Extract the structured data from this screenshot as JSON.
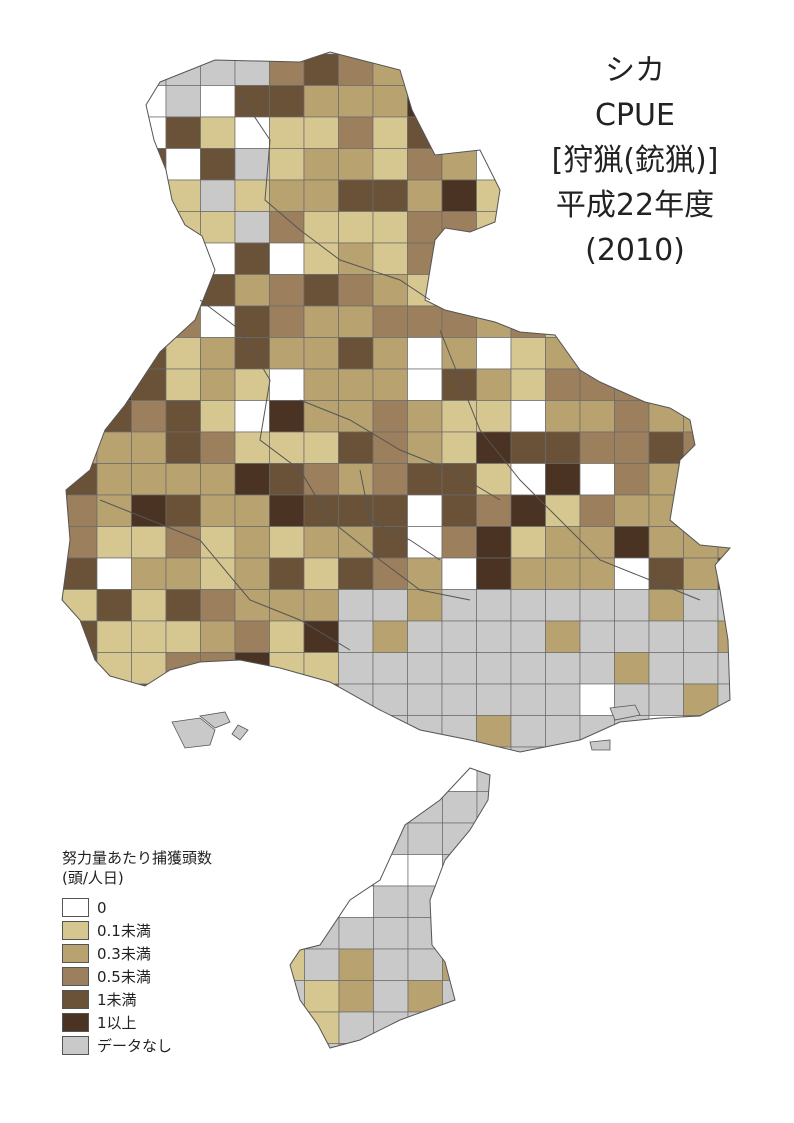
{
  "title": {
    "line1": "シカ",
    "line2": "CPUE",
    "line3": "[狩猟(銃猟)]",
    "line4": "平成22年度",
    "line5": "(2010)"
  },
  "legend": {
    "title_line1": "努力量あたり捕獲頭数",
    "title_line2": "(頭/人日)",
    "items": [
      {
        "label": "0",
        "color": "#ffffff"
      },
      {
        "label": "0.1未満",
        "color": "#d6c690"
      },
      {
        "label": "0.3未満",
        "color": "#b8a270"
      },
      {
        "label": "0.5未満",
        "color": "#9c7f5c"
      },
      {
        "label": "1未満",
        "color": "#6a5238"
      },
      {
        "label": "1以上",
        "color": "#4a3322"
      },
      {
        "label": "データなし",
        "color": "#c9c9c9"
      }
    ]
  }
}
